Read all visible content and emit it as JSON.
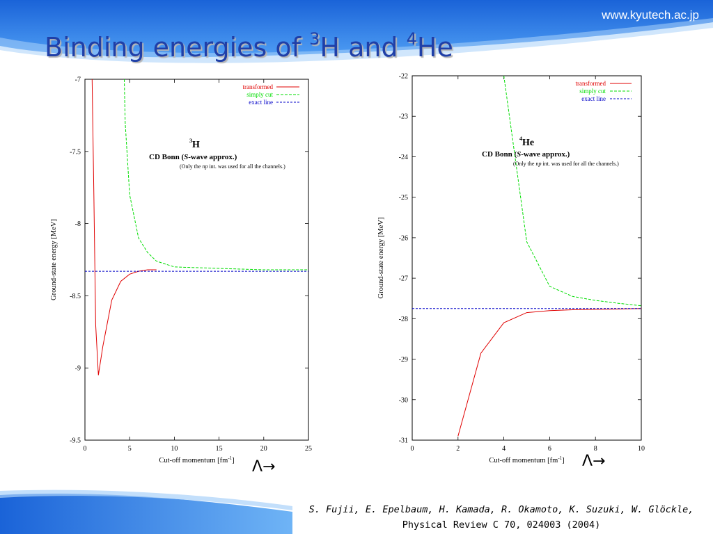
{
  "header": {
    "site_url": "www.kyutech.ac.jp",
    "title_prefix": "Binding energies of ",
    "title_mass_a": "3",
    "title_nucleus_a": "H",
    "title_and": " and ",
    "title_mass_b": "4",
    "title_nucleus_b": "He"
  },
  "colors": {
    "title": "#1f3fa8",
    "banner": "#1c6fe0",
    "transformed": "#e00000",
    "simply_cut": "#00dd00",
    "exact_line": "#0000c8"
  },
  "lambda_labels": [
    "Λ→",
    "Λ→"
  ],
  "citation": {
    "authors": "S. Fujii, E. Epelbaum, H. Kamada, R. Okamoto, K. Suzuki,  W. Glöckle,",
    "journal": "Physical Review C 70, 024003 (2004)"
  },
  "chart_data": [
    {
      "type": "line",
      "nucleus_mass": "3",
      "nucleus_symbol": "H",
      "subtitle_lead": "CD Bonn (",
      "subtitle_italic": "S",
      "subtitle_tail": "-wave approx.)",
      "note_lead": "(Only the ",
      "note_italic": "np",
      "note_tail": " int. was used for all the channels.)",
      "xlabel_lead": "Cut-off momentum [fm",
      "xlabel_sup": "-1",
      "xlabel_tail": "]",
      "ylabel": "Ground-state energy [MeV]",
      "xlim": [
        0,
        25
      ],
      "ylim": [
        -9.5,
        -7
      ],
      "xticks": [
        "0",
        "5",
        "10",
        "15",
        "20",
        "25"
      ],
      "yticks": [
        "-9.5",
        "-9",
        "-8.5",
        "-8",
        "-7.5",
        "-7"
      ],
      "grid": false,
      "legend_position": "top-right",
      "series": [
        {
          "name": "transformed",
          "color": "#e00000",
          "dash": "solid",
          "x": [
            0.8,
            1.0,
            1.2,
            1.5,
            2.0,
            3.0,
            4.0,
            5.0,
            6.0,
            7.0,
            8.0
          ],
          "y": [
            -7.0,
            -7.8,
            -8.7,
            -9.05,
            -8.85,
            -8.53,
            -8.4,
            -8.35,
            -8.33,
            -8.32,
            -8.32
          ]
        },
        {
          "name": "simply cut",
          "color": "#00dd00",
          "dash": "dashed",
          "x": [
            4.4,
            4.5,
            5.0,
            6.0,
            7.0,
            8.0,
            10.0,
            15.0,
            20.0,
            25.0
          ],
          "y": [
            -7.0,
            -7.3,
            -7.8,
            -8.1,
            -8.2,
            -8.26,
            -8.3,
            -8.31,
            -8.32,
            -8.32
          ]
        },
        {
          "name": "exact line",
          "color": "#0000c8",
          "dash": "dotted",
          "x": [
            0,
            25
          ],
          "y": [
            -8.33,
            -8.33
          ]
        }
      ]
    },
    {
      "type": "line",
      "nucleus_mass": "4",
      "nucleus_symbol": "He",
      "subtitle_lead": "CD Bonn (",
      "subtitle_italic": "S",
      "subtitle_tail": "-wave approx.)",
      "note_lead": "(Only the ",
      "note_italic": "np",
      "note_tail": " int. was used for all the channels.)",
      "xlabel_lead": "Cut-off momentum [fm",
      "xlabel_sup": "-1",
      "xlabel_tail": "]",
      "ylabel": "Ground-state energy [MeV]",
      "xlim": [
        0,
        10
      ],
      "ylim": [
        -31,
        -22
      ],
      "xticks": [
        "0",
        "2",
        "4",
        "6",
        "8",
        "10"
      ],
      "yticks": [
        "-31",
        "-30",
        "-29",
        "-28",
        "-27",
        "-26",
        "-25",
        "-24",
        "-23",
        "-22"
      ],
      "grid": false,
      "legend_position": "top-right",
      "series": [
        {
          "name": "transformed",
          "color": "#e00000",
          "dash": "solid",
          "x": [
            2,
            3,
            4,
            5,
            6,
            7,
            8,
            9,
            10
          ],
          "y": [
            -30.9,
            -28.85,
            -28.1,
            -27.85,
            -27.8,
            -27.78,
            -27.77,
            -27.76,
            -27.75
          ]
        },
        {
          "name": "simply cut",
          "color": "#00dd00",
          "dash": "dashed",
          "x": [
            4,
            5,
            6,
            7,
            8,
            9,
            10
          ],
          "y": [
            -22.0,
            -26.1,
            -27.2,
            -27.45,
            -27.55,
            -27.62,
            -27.68
          ]
        },
        {
          "name": "exact line",
          "color": "#0000c8",
          "dash": "dotted",
          "x": [
            0,
            10
          ],
          "y": [
            -27.75,
            -27.75
          ]
        }
      ]
    }
  ]
}
